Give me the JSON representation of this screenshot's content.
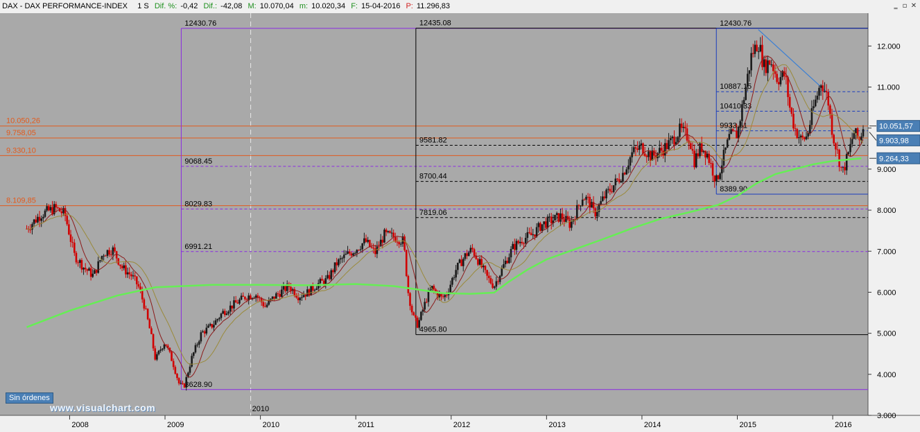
{
  "header": {
    "symbol": "DAX - DAX PERFORMANCE-INDEX",
    "timeframe": "1 S",
    "dif_pct_label": "Dif. %:",
    "dif_pct_value": "-0,42",
    "dif_label": "Dif.:",
    "dif_value": "-42,08",
    "max_label": "M:",
    "max_value": "10.070,04",
    "min_label": "m:",
    "min_value": "10.020,34",
    "date_label": "F:",
    "date_value": "15-04-2016",
    "price_label": "P:",
    "price_value": "11.296,83"
  },
  "window_buttons": {
    "minimize": "‗",
    "restore": "▫",
    "close": "✕"
  },
  "orders_badge": "Sin órdenes",
  "watermark": "www.visualchart.com",
  "colors": {
    "plot_bg": "#a9a9a9",
    "bull": "#1a1a1a",
    "bear": "#d10000",
    "ma_short": "#8b1a1a",
    "ma_mid": "#9a8a3a",
    "ma_long": "#66ee55",
    "support_lines": "#e25a1c",
    "fib_purple": "#8a2be2",
    "fib_black": "#000000",
    "fib_blue": "#1a3dbd",
    "trendline": "#3a7fd5",
    "price_tag": "#4a7fb5"
  },
  "chart_data": {
    "type": "candlestick",
    "title": "DAX - DAX PERFORMANCE-INDEX",
    "timeframe": "weekly",
    "ylim": [
      3000,
      12800
    ],
    "y_ticks": [
      "3.000",
      "4.000",
      "5.000",
      "6.000",
      "7.000",
      "8.000",
      "9.000",
      "10.000",
      "11.000",
      "12.000"
    ],
    "x_ticks": [
      "2008",
      "2009",
      "2010",
      "2011",
      "2012",
      "2013",
      "2014",
      "2015",
      "2016"
    ],
    "cursor_label": "2010",
    "x_range": [
      2007.55,
      2016.32
    ],
    "price_path": [
      [
        2007.55,
        7550
      ],
      [
        2007.7,
        7900
      ],
      [
        2007.85,
        8050
      ],
      [
        2007.95,
        7900
      ],
      [
        2008.05,
        6900
      ],
      [
        2008.15,
        6600
      ],
      [
        2008.25,
        6400
      ],
      [
        2008.35,
        6950
      ],
      [
        2008.45,
        7050
      ],
      [
        2008.55,
        6600
      ],
      [
        2008.65,
        6400
      ],
      [
        2008.72,
        6150
      ],
      [
        2008.78,
        5700
      ],
      [
        2008.85,
        5000
      ],
      [
        2008.9,
        4350
      ],
      [
        2008.95,
        4600
      ],
      [
        2009.0,
        4800
      ],
      [
        2009.08,
        4300
      ],
      [
        2009.15,
        3750
      ],
      [
        2009.2,
        3700
      ],
      [
        2009.28,
        4400
      ],
      [
        2009.38,
        5000
      ],
      [
        2009.5,
        5200
      ],
      [
        2009.6,
        5500
      ],
      [
        2009.72,
        5700
      ],
      [
        2009.85,
        5900
      ],
      [
        2009.95,
        5950
      ],
      [
        2010.05,
        5650
      ],
      [
        2010.15,
        5900
      ],
      [
        2010.3,
        6150
      ],
      [
        2010.4,
        5900
      ],
      [
        2010.5,
        6000
      ],
      [
        2010.6,
        6200
      ],
      [
        2010.7,
        6300
      ],
      [
        2010.8,
        6700
      ],
      [
        2010.9,
        6900
      ],
      [
        2011.0,
        7050
      ],
      [
        2011.1,
        7250
      ],
      [
        2011.2,
        6950
      ],
      [
        2011.3,
        7400
      ],
      [
        2011.4,
        7350
      ],
      [
        2011.5,
        7250
      ],
      [
        2011.55,
        6000
      ],
      [
        2011.6,
        5400
      ],
      [
        2011.65,
        5200
      ],
      [
        2011.75,
        5900
      ],
      [
        2011.8,
        6100
      ],
      [
        2011.9,
        5850
      ],
      [
        2011.95,
        5950
      ],
      [
        2012.05,
        6550
      ],
      [
        2012.15,
        6900
      ],
      [
        2012.22,
        7050
      ],
      [
        2012.3,
        6700
      ],
      [
        2012.38,
        6350
      ],
      [
        2012.45,
        6150
      ],
      [
        2012.55,
        6650
      ],
      [
        2012.65,
        7100
      ],
      [
        2012.75,
        7300
      ],
      [
        2012.85,
        7400
      ],
      [
        2012.95,
        7650
      ],
      [
        2013.05,
        7750
      ],
      [
        2013.15,
        7850
      ],
      [
        2013.25,
        7650
      ],
      [
        2013.3,
        7900
      ],
      [
        2013.38,
        8350
      ],
      [
        2013.45,
        8200
      ],
      [
        2013.5,
        7900
      ],
      [
        2013.6,
        8300
      ],
      [
        2013.7,
        8600
      ],
      [
        2013.8,
        8900
      ],
      [
        2013.9,
        9400
      ],
      [
        2014.0,
        9550
      ],
      [
        2014.1,
        9300
      ],
      [
        2014.2,
        9450
      ],
      [
        2014.3,
        9650
      ],
      [
        2014.4,
        9950
      ],
      [
        2014.5,
        9750
      ],
      [
        2014.55,
        9200
      ],
      [
        2014.62,
        9550
      ],
      [
        2014.68,
        9400
      ],
      [
        2014.78,
        8700
      ],
      [
        2014.85,
        9250
      ],
      [
        2014.92,
        9800
      ],
      [
        2015.0,
        9850
      ],
      [
        2015.08,
        10900
      ],
      [
        2015.15,
        11800
      ],
      [
        2015.22,
        12100
      ],
      [
        2015.28,
        11500
      ],
      [
        2015.35,
        11650
      ],
      [
        2015.42,
        11200
      ],
      [
        2015.5,
        11300
      ],
      [
        2015.55,
        10500
      ],
      [
        2015.6,
        10000
      ],
      [
        2015.67,
        9700
      ],
      [
        2015.73,
        9800
      ],
      [
        2015.8,
        10500
      ],
      [
        2015.88,
        11150
      ],
      [
        2015.95,
        10700
      ],
      [
        2016.0,
        9850
      ],
      [
        2016.05,
        9400
      ],
      [
        2016.1,
        8900
      ],
      [
        2016.17,
        9400
      ],
      [
        2016.22,
        9900
      ],
      [
        2016.28,
        9700
      ],
      [
        2016.32,
        10050
      ]
    ],
    "moving_averages": [
      {
        "type": "ma_long",
        "points": [
          [
            2007.55,
            5150
          ],
          [
            2008.0,
            5550
          ],
          [
            2008.5,
            5920
          ],
          [
            2008.9,
            6120
          ],
          [
            2009.5,
            6180
          ],
          [
            2010.0,
            6180
          ],
          [
            2010.5,
            6170
          ],
          [
            2011.0,
            6200
          ],
          [
            2011.4,
            6150
          ],
          [
            2011.7,
            6050
          ],
          [
            2011.9,
            5980
          ],
          [
            2012.2,
            5960
          ],
          [
            2012.45,
            5990
          ],
          [
            2012.6,
            6250
          ],
          [
            2012.8,
            6550
          ],
          [
            2013.0,
            6800
          ],
          [
            2013.3,
            7050
          ],
          [
            2013.6,
            7300
          ],
          [
            2013.9,
            7560
          ],
          [
            2014.2,
            7790
          ],
          [
            2014.5,
            7950
          ],
          [
            2014.8,
            8130
          ],
          [
            2015.0,
            8350
          ],
          [
            2015.2,
            8650
          ],
          [
            2015.4,
            8880
          ],
          [
            2015.6,
            9000
          ],
          [
            2015.8,
            9120
          ],
          [
            2016.0,
            9200
          ],
          [
            2016.15,
            9230
          ],
          [
            2016.3,
            9264
          ]
        ]
      }
    ],
    "horizontal_levels": [
      {
        "label": "10.050,26",
        "value": 10050.26,
        "kind": "support"
      },
      {
        "label": "9.758,05",
        "value": 9758.05,
        "kind": "support"
      },
      {
        "label": "9.330,10",
        "value": 9330.1,
        "kind": "support"
      },
      {
        "label": "8.109,85",
        "value": 8109.85,
        "kind": "support"
      }
    ],
    "fibonacci_sets": [
      {
        "kind": "fib_purple",
        "x_start": 2009.17,
        "levels": [
          {
            "label": "12430.76",
            "value": 12430.76
          },
          {
            "label": "9068.45",
            "value": 9068.45
          },
          {
            "label": "8029.83",
            "value": 8029.83
          },
          {
            "label": "6991.21",
            "value": 6991.21
          },
          {
            "label": "3628.90",
            "value": 3628.9
          }
        ]
      },
      {
        "kind": "fib_black",
        "x_start": 2011.63,
        "levels": [
          {
            "label": "12435.08",
            "value": 12435.08
          },
          {
            "label": "9581.82",
            "value": 9581.82
          },
          {
            "label": "8700.44",
            "value": 8700.44
          },
          {
            "label": "7819.06",
            "value": 7819.06
          },
          {
            "label": "4965.80",
            "value": 4965.8
          }
        ]
      },
      {
        "kind": "fib_blue",
        "x_start": 2014.78,
        "levels": [
          {
            "label": "12430.76",
            "value": 12430.76
          },
          {
            "label": "10887.15",
            "value": 10887.15
          },
          {
            "label": "10410.33",
            "value": 10410.33
          },
          {
            "label": "9933.51",
            "value": 9933.51
          },
          {
            "label": "8389.90",
            "value": 8389.9
          }
        ]
      }
    ],
    "trendline": [
      [
        2015.22,
        12400
      ],
      [
        2015.95,
        10850
      ]
    ],
    "price_tags": [
      {
        "label": "10.051,57",
        "value": 10051.57
      },
      {
        "label": "9.903,98",
        "value": 9903.98
      },
      {
        "label": "9.264,33",
        "value": 9264.33
      }
    ]
  }
}
